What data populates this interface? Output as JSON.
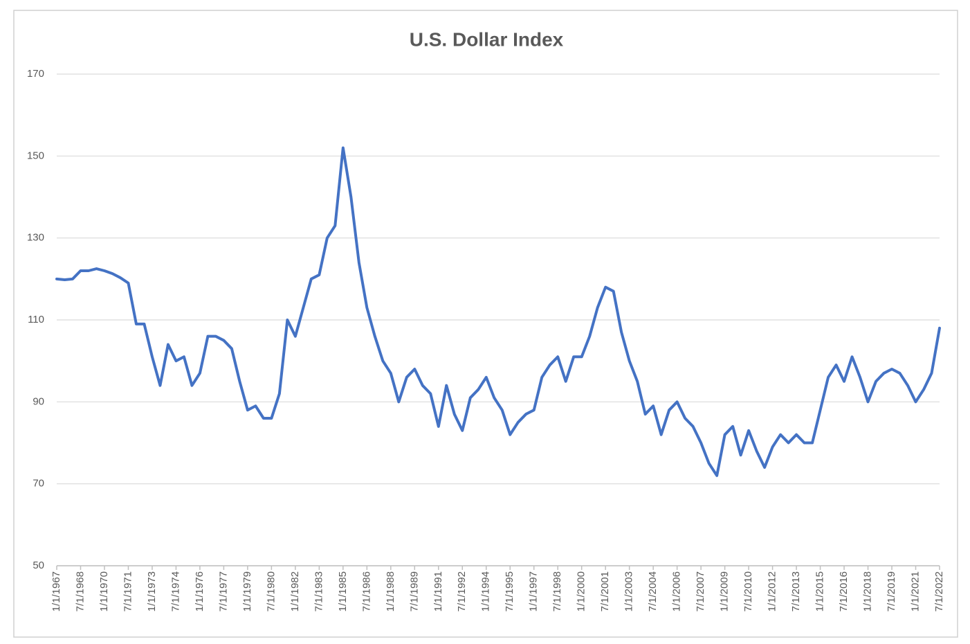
{
  "chart_data": {
    "type": "line",
    "title": "U.S. Dollar Index",
    "categories": [
      "1/1/1967",
      null,
      null,
      "7/1/1968",
      null,
      null,
      "1/1/1970",
      null,
      null,
      "7/1/1971",
      null,
      null,
      "1/1/1973",
      null,
      null,
      "7/1/1974",
      null,
      null,
      "1/1/1976",
      null,
      null,
      "7/1/1977",
      null,
      null,
      "1/1/1979",
      null,
      null,
      "7/1/1980",
      null,
      null,
      "1/1/1982",
      null,
      null,
      "7/1/1983",
      null,
      null,
      "1/1/1985",
      null,
      null,
      "7/1/1986",
      null,
      null,
      "1/1/1988",
      null,
      null,
      "7/1/1989",
      null,
      null,
      "1/1/1991",
      null,
      null,
      "7/1/1992",
      null,
      null,
      "1/1/1994",
      null,
      null,
      "7/1/1995",
      null,
      null,
      "1/1/1997",
      null,
      null,
      "7/1/1998",
      null,
      null,
      "1/1/2000",
      null,
      null,
      "7/1/2001",
      null,
      null,
      "1/1/2003",
      null,
      null,
      "7/1/2004",
      null,
      null,
      "1/1/2006",
      null,
      null,
      "7/1/2007",
      null,
      null,
      "1/1/2009",
      null,
      null,
      "7/1/2010",
      null,
      null,
      "1/1/2012",
      null,
      null,
      "7/1/2013",
      null,
      null,
      "1/1/2015",
      null,
      null,
      "7/1/2016",
      null,
      null,
      "1/1/2018",
      null,
      null,
      "7/1/2019",
      null,
      null,
      "1/1/2021",
      null,
      null,
      "7/1/2022"
    ],
    "values": [
      120,
      119.8,
      120,
      122,
      122,
      122.5,
      122,
      121.3,
      120.3,
      119,
      109,
      109,
      101,
      94,
      104,
      100,
      101,
      94,
      97,
      106,
      106,
      105,
      103,
      95,
      88,
      89,
      86,
      86,
      92,
      110,
      106,
      113,
      120,
      121,
      130,
      133,
      152,
      140,
      124,
      113,
      106,
      100,
      97,
      90,
      96,
      98,
      94,
      92,
      84,
      94,
      87,
      83,
      91,
      93,
      96,
      91,
      88,
      82,
      85,
      87,
      88,
      96,
      99,
      101,
      95,
      101,
      101,
      106,
      113,
      118,
      117,
      107,
      100,
      95,
      87,
      89,
      82,
      88,
      90,
      86,
      84,
      80,
      75,
      72,
      82,
      84,
      77,
      83,
      78,
      74,
      79,
      82,
      80,
      82,
      80,
      80,
      88,
      96,
      99,
      95,
      101,
      96,
      90,
      95,
      97,
      98,
      97,
      94,
      90,
      93,
      97,
      108
    ],
    "color": "#4472c4",
    "ylim": [
      50,
      170
    ],
    "yticks": [
      50,
      70,
      90,
      110,
      130,
      150,
      170
    ],
    "grid": true
  }
}
